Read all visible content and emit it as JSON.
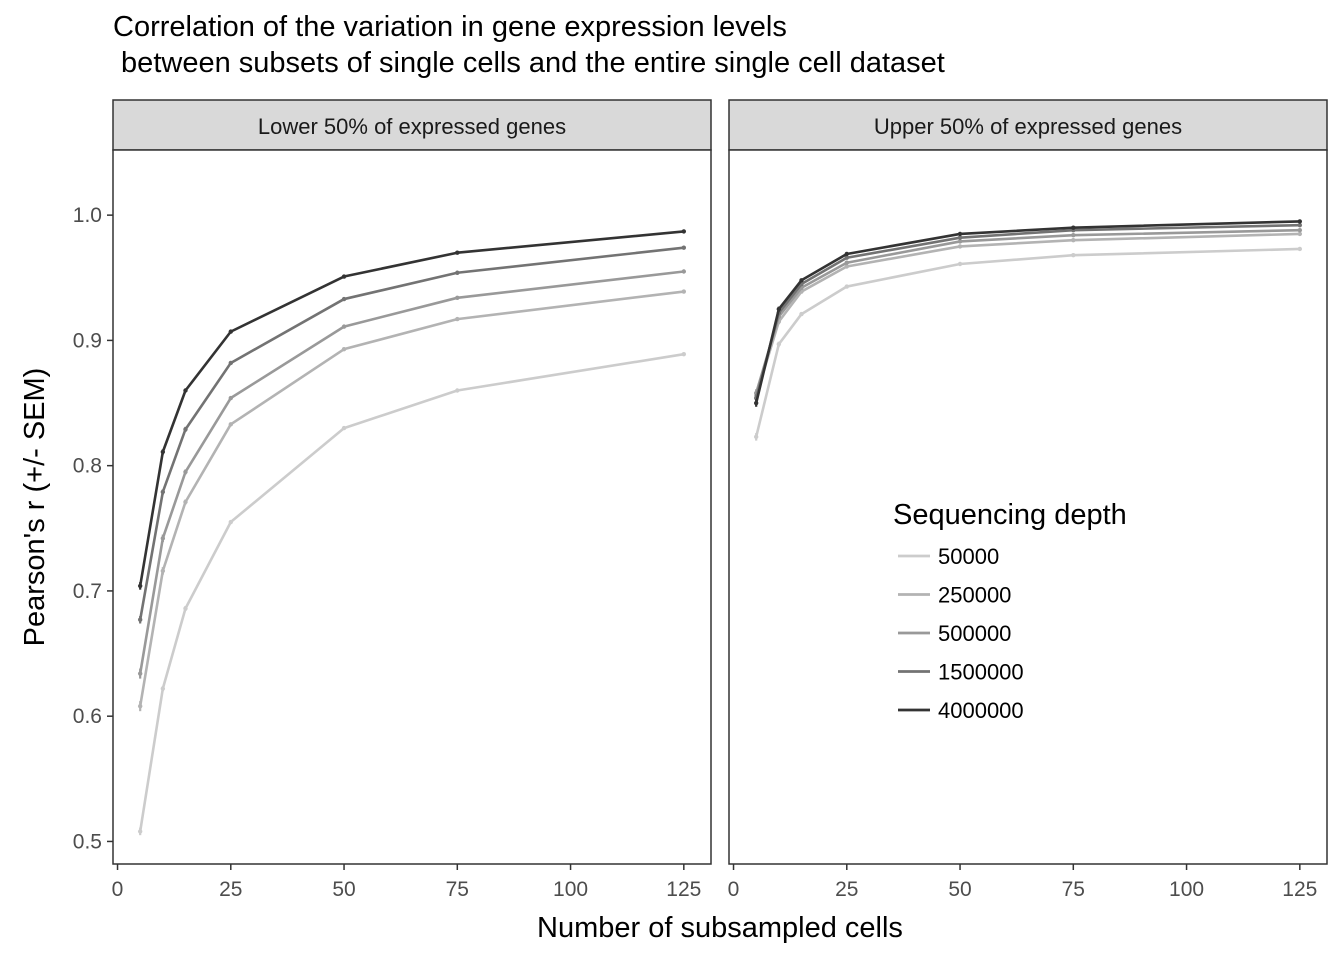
{
  "chart_data": {
    "type": "line",
    "title": [
      "Correlation of the variation in gene expression levels",
      " between subsets of single cells and the entire single cell dataset"
    ],
    "xlabel": "Number of subsampled cells",
    "ylabel": "Pearson's r (+/- SEM)",
    "xlim": [
      -1,
      131
    ],
    "ylim": [
      0.482,
      1.052
    ],
    "x_ticks": [
      0,
      25,
      50,
      75,
      100,
      125
    ],
    "y_ticks": [
      0.5,
      0.6,
      0.7,
      0.8,
      0.9,
      1.0
    ],
    "y_tick_labels": [
      "0.5",
      "0.6",
      "0.7",
      "0.8",
      "0.9",
      "1.0"
    ],
    "grid": false,
    "legend": {
      "title": "Sequencing depth",
      "placement": "inside-right-panel",
      "entries": [
        "50000",
        "250000",
        "500000",
        "1500000",
        "4000000"
      ]
    },
    "series_colors": [
      "#cccccc",
      "#b3b3b3",
      "#999999",
      "#737373",
      "#333333"
    ],
    "x": [
      5,
      10,
      15,
      25,
      50,
      75,
      125
    ],
    "panels": [
      {
        "label": "Lower 50% of expressed genes",
        "series": [
          {
            "name": "50000",
            "values": [
              0.508,
              0.622,
              0.686,
              0.755,
              0.83,
              0.86,
              0.889
            ],
            "sem": [
              0.003,
              0.002,
              0.002,
              0.001,
              0.001,
              0.001,
              0.001
            ]
          },
          {
            "name": "250000",
            "values": [
              0.608,
              0.716,
              0.771,
              0.833,
              0.893,
              0.917,
              0.939
            ],
            "sem": [
              0.004,
              0.003,
              0.002,
              0.001,
              0.001,
              0.001,
              0.001
            ]
          },
          {
            "name": "500000",
            "values": [
              0.634,
              0.742,
              0.795,
              0.854,
              0.911,
              0.934,
              0.955
            ],
            "sem": [
              0.004,
              0.003,
              0.002,
              0.001,
              0.001,
              0.001,
              0.001
            ]
          },
          {
            "name": "1500000",
            "values": [
              0.677,
              0.779,
              0.829,
              0.882,
              0.933,
              0.954,
              0.974
            ],
            "sem": [
              0.003,
              0.002,
              0.002,
              0.001,
              0.001,
              0.001,
              0.001
            ]
          },
          {
            "name": "4000000",
            "values": [
              0.704,
              0.811,
              0.86,
              0.907,
              0.951,
              0.97,
              0.987
            ],
            "sem": [
              0.003,
              0.002,
              0.001,
              0.001,
              0.001,
              0.001,
              0.001
            ]
          }
        ]
      },
      {
        "label": "Upper 50% of expressed genes",
        "series": [
          {
            "name": "50000",
            "values": [
              0.823,
              0.897,
              0.921,
              0.943,
              0.961,
              0.968,
              0.973
            ],
            "sem": [
              0.003,
              0.002,
              0.001,
              0.001,
              0.001,
              0.001,
              0.001
            ]
          },
          {
            "name": "250000",
            "values": [
              0.856,
              0.915,
              0.939,
              0.959,
              0.975,
              0.98,
              0.985
            ],
            "sem": [
              0.003,
              0.002,
              0.001,
              0.001,
              0.001,
              0.001,
              0.001
            ]
          },
          {
            "name": "500000",
            "values": [
              0.858,
              0.919,
              0.942,
              0.962,
              0.979,
              0.984,
              0.988
            ],
            "sem": [
              0.003,
              0.002,
              0.001,
              0.001,
              0.001,
              0.001,
              0.001
            ]
          },
          {
            "name": "1500000",
            "values": [
              0.854,
              0.922,
              0.945,
              0.966,
              0.982,
              0.988,
              0.992
            ],
            "sem": [
              0.003,
              0.002,
              0.001,
              0.001,
              0.001,
              0.001,
              0.001
            ]
          },
          {
            "name": "4000000",
            "values": [
              0.85,
              0.925,
              0.948,
              0.969,
              0.985,
              0.99,
              0.995
            ],
            "sem": [
              0.003,
              0.002,
              0.001,
              0.001,
              0.001,
              0.001,
              0.001
            ]
          }
        ]
      }
    ]
  }
}
